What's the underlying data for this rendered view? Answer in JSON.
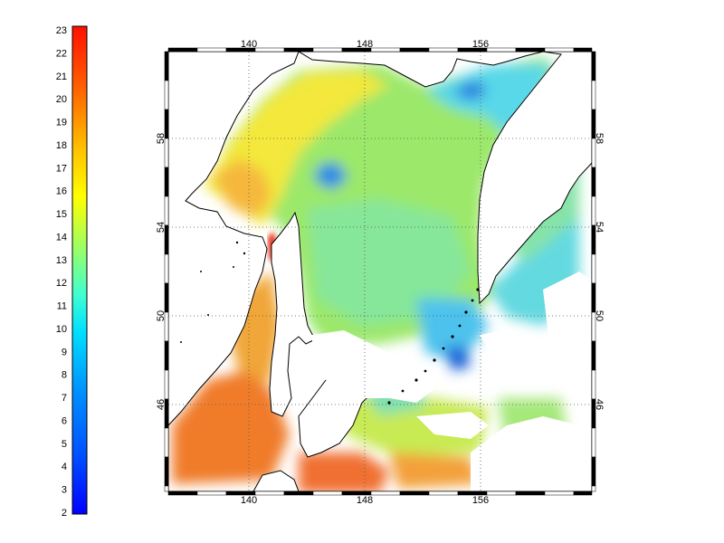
{
  "colorbar": {
    "ticks": [
      "2",
      "3",
      "4",
      "5",
      "6",
      "7",
      "8",
      "9",
      "10",
      "11",
      "12",
      "13",
      "14",
      "15",
      "16",
      "17",
      "18",
      "19",
      "20",
      "21",
      "22",
      "23"
    ],
    "min": 2,
    "max": 23,
    "colormap": "jet"
  },
  "map": {
    "lon_ticks": [
      "140",
      "148",
      "156"
    ],
    "lat_ticks": [
      "46",
      "50",
      "54",
      "58"
    ],
    "lon_range": [
      134,
      164
    ],
    "lat_range": [
      42.5,
      60
    ],
    "frame_ticks": "alternating black/white bar",
    "grid": "dotted",
    "land_color": "#ffffff",
    "missing_data_color": "#ffffff",
    "coastline_color": "#000000"
  }
}
